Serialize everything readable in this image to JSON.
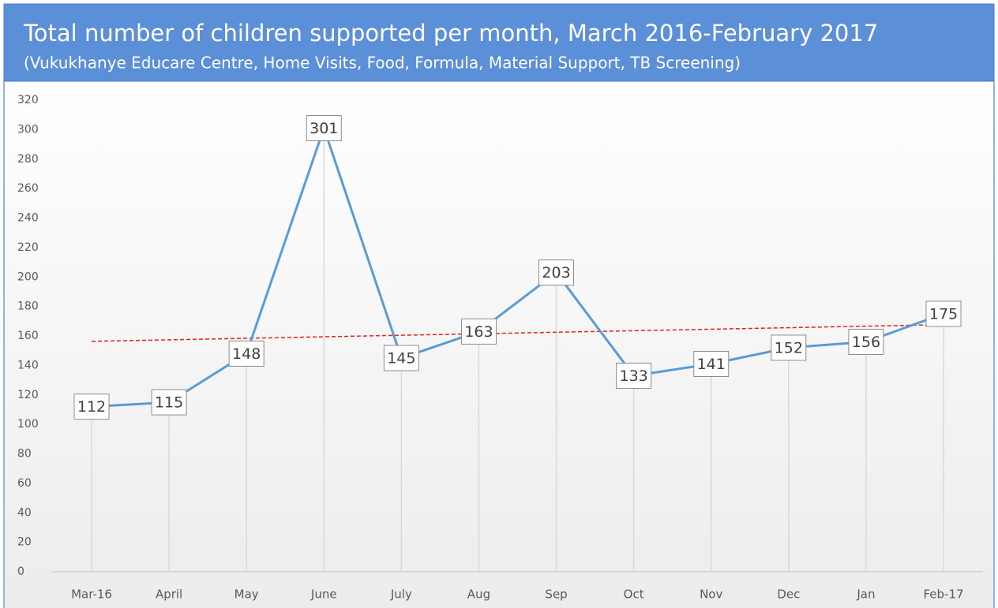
{
  "chart_data": {
    "type": "line",
    "title": "Total number of children supported per month, March 2016-February 2017",
    "subtitle": "(Vukukhanye Educare Centre, Home Visits, Food, Formula, Material Support, TB Screening)",
    "categories": [
      "Mar-16",
      "April",
      "May",
      "June",
      "July",
      "Aug",
      "Sep",
      "Oct",
      "Nov",
      "Dec",
      "Jan",
      "Feb-17"
    ],
    "values": [
      112,
      115,
      148,
      301,
      145,
      163,
      203,
      133,
      141,
      152,
      156,
      175
    ],
    "color": "#5b9bd5",
    "ylim": [
      0,
      320
    ],
    "yticks": [
      0,
      20,
      40,
      60,
      80,
      100,
      120,
      140,
      160,
      180,
      200,
      220,
      240,
      260,
      280,
      300,
      320
    ],
    "trendline": {
      "type": "linear",
      "color": "#e02020"
    }
  }
}
